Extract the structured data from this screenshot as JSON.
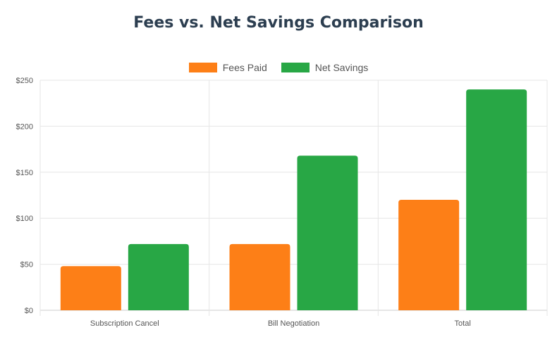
{
  "chart_data": {
    "type": "bar",
    "title": "Fees vs. Net Savings Comparison",
    "categories": [
      "Subscription Cancel",
      "Bill Negotiation",
      "Total"
    ],
    "series": [
      {
        "name": "Fees Paid",
        "color": "#fd7f17",
        "values": [
          48,
          72,
          120
        ]
      },
      {
        "name": "Net Savings",
        "color": "#28a745",
        "values": [
          72,
          168,
          240
        ]
      }
    ],
    "y_ticks": [
      "$0",
      "$50",
      "$100",
      "$150",
      "$200",
      "$250"
    ],
    "ylim": [
      0,
      250
    ],
    "grid": true,
    "legend_position": "top"
  }
}
